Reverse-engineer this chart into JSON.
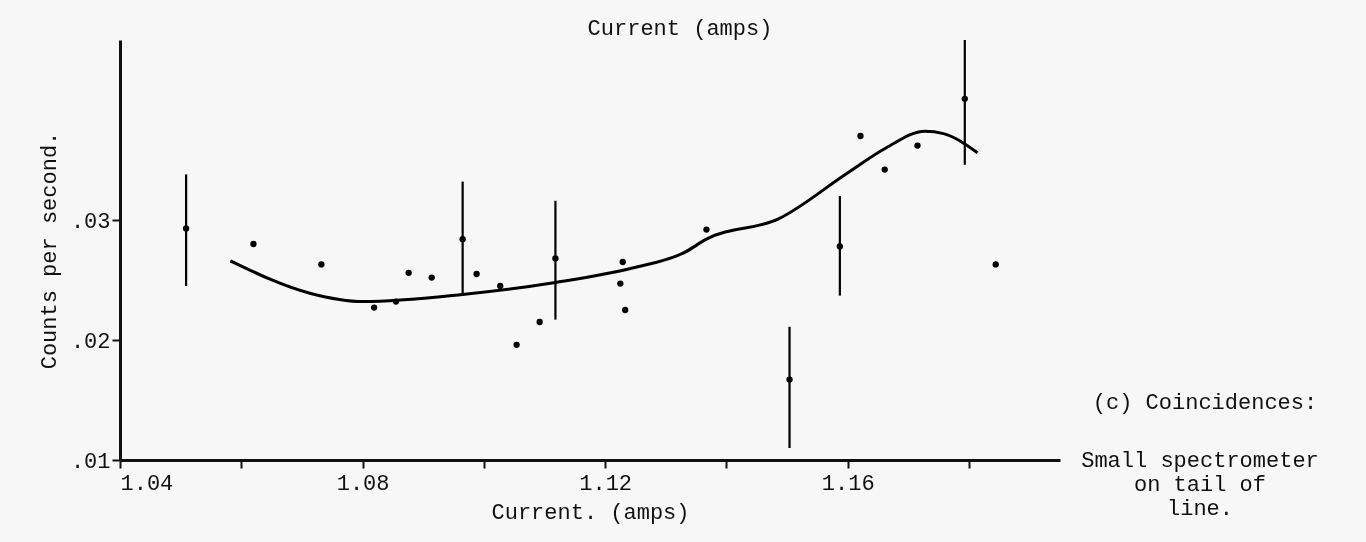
{
  "chart_data": {
    "type": "scatter",
    "xlabel": "Current. (amps)",
    "ylabel": "Counts per second.",
    "annotations": [
      "Current (amps)",
      "(c) Coincidences:",
      "Small spectrometer\non tail of\nline."
    ],
    "xlim": [
      1.04,
      1.195
    ],
    "ylim": [
      0.01,
      0.045
    ],
    "xticks": [
      1.04,
      {
        "value": 1.06,
        "label": null
      },
      1.08,
      {
        "value": 1.1,
        "label": null
      },
      1.12,
      {
        "value": 1.14,
        "label": null
      },
      1.16,
      {
        "value": 1.18,
        "label": null
      }
    ],
    "yticks": [
      {
        "value": 0.01,
        "label": ".01"
      },
      {
        "value": 0.02,
        "label": ".02"
      },
      {
        "value": 0.03,
        "label": ".03"
      }
    ],
    "grid": false,
    "series": [
      {
        "marker": "circle",
        "color": "#000000",
        "x": [
          1.0509,
          1.062,
          1.0732,
          1.0819,
          1.0855,
          1.0876,
          1.0914,
          1.0965,
          1.0988,
          1.1027,
          1.1054,
          1.1092,
          1.1118,
          1.1229,
          1.1225,
          1.1233,
          1.1367,
          1.1504,
          1.1587,
          1.1621,
          1.1661,
          1.1715,
          1.1793,
          1.1844
        ],
        "values": [
          0.0293,
          0.028,
          0.0263,
          0.0227,
          0.0232,
          0.0256,
          0.0252,
          0.0284,
          0.0255,
          0.0245,
          0.0196,
          0.0215,
          0.0268,
          0.0265,
          0.0247,
          0.0225,
          0.0292,
          0.0167,
          0.0278,
          0.037,
          0.0342,
          0.0362,
          0.0401,
          0.0263
        ],
        "errors": [
          [
            0.0245,
            0.0338
          ],
          null,
          null,
          null,
          null,
          null,
          null,
          [
            0.0239,
            0.0332
          ],
          null,
          null,
          null,
          null,
          [
            0.0217,
            0.0316
          ],
          null,
          null,
          null,
          null,
          [
            0.011,
            0.0211
          ],
          [
            0.0237,
            0.032
          ],
          null,
          null,
          null,
          [
            0.0346,
            0.045
          ],
          null
        ]
      },
      {
        "type": "line",
        "color": "#000000",
        "x": [
          1.0582,
          1.0713,
          1.0801,
          1.0965,
          1.1118,
          1.1245,
          1.1331,
          1.1367,
          1.1486,
          1.1599,
          1.1663,
          1.1727,
          1.1758,
          1.1814
        ],
        "values": [
          0.0266,
          0.0239,
          0.0232,
          0.0238,
          0.0248,
          0.026,
          0.0273,
          0.0284,
          0.0301,
          0.0339,
          0.036,
          0.0374,
          0.0372,
          0.0356
        ]
      }
    ]
  }
}
